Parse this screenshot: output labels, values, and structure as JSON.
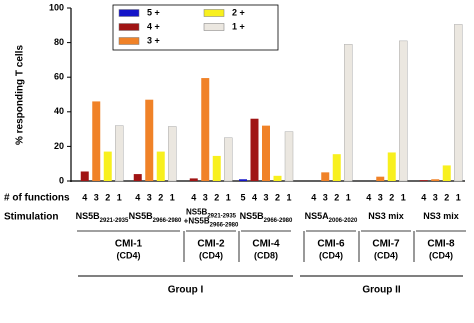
{
  "chart_data": {
    "type": "bar",
    "y_label": "% responding T cells",
    "ylim": [
      0,
      100
    ],
    "yticks": [
      0,
      20,
      40,
      60,
      80,
      100
    ],
    "row_labels": [
      "# of functions",
      "Stimulation"
    ],
    "function_labels": [
      [
        "4",
        "3",
        "2",
        "1"
      ],
      [
        "4",
        "3",
        "2",
        "1"
      ],
      [
        "4",
        "3",
        "2",
        "1"
      ],
      [
        "5",
        "4",
        "3",
        "2",
        "1"
      ],
      [
        "4",
        "3",
        "2",
        "1"
      ],
      [
        "4",
        "3",
        "2",
        "1"
      ],
      [
        "4",
        "3",
        "2",
        "1"
      ]
    ],
    "stimulation": [
      [
        {
          "text": "NS5B",
          "sub": "2921-2935"
        }
      ],
      [
        {
          "text": "NS5B",
          "sub": "2966-2980"
        }
      ],
      [
        {
          "text": "NS5B",
          "sub": "2921-2935"
        },
        {
          "text": "+NS5B",
          "sub": "2966-2980"
        }
      ],
      [
        {
          "text": "NS5B",
          "sub": "2966-2980"
        }
      ],
      [
        {
          "text": "NS5A",
          "sub": "2006-2020"
        }
      ],
      [
        {
          "text": "NS3 mix"
        }
      ],
      [
        {
          "text": "NS3 mix"
        }
      ]
    ],
    "subjects": [
      {
        "name": "CMI-1",
        "cell": "(CD4)"
      },
      {
        "name": "CMI-2",
        "cell": "(CD4)"
      },
      {
        "name": "CMI-4",
        "cell": "(CD8)"
      },
      {
        "name": "CMI-6",
        "cell": "(CD4)"
      },
      {
        "name": "CMI-7",
        "cell": "(CD4)"
      },
      {
        "name": "CMI-8",
        "cell": "(CD4)"
      }
    ],
    "groups": [
      "Group I",
      "Group II"
    ],
    "series": [
      {
        "name": "5 +",
        "color": "#1414c8",
        "values": [
          null,
          null,
          null,
          1,
          null,
          null,
          null
        ]
      },
      {
        "name": "4 +",
        "color": "#a01414",
        "values": [
          5.5,
          4,
          1.5,
          36,
          0,
          0,
          0.5
        ]
      },
      {
        "name": "3 +",
        "color": "#f08228",
        "values": [
          46,
          47,
          59.5,
          32,
          5,
          2.5,
          1
        ]
      },
      {
        "name": "2 +",
        "color": "#f8f01e",
        "values": [
          17,
          17,
          14.5,
          3,
          15.5,
          16.5,
          9
        ]
      },
      {
        "name": "1 +",
        "color": "#ebe7e0",
        "values": [
          32,
          31.5,
          25,
          28.5,
          79,
          81,
          90.5
        ]
      }
    ]
  }
}
